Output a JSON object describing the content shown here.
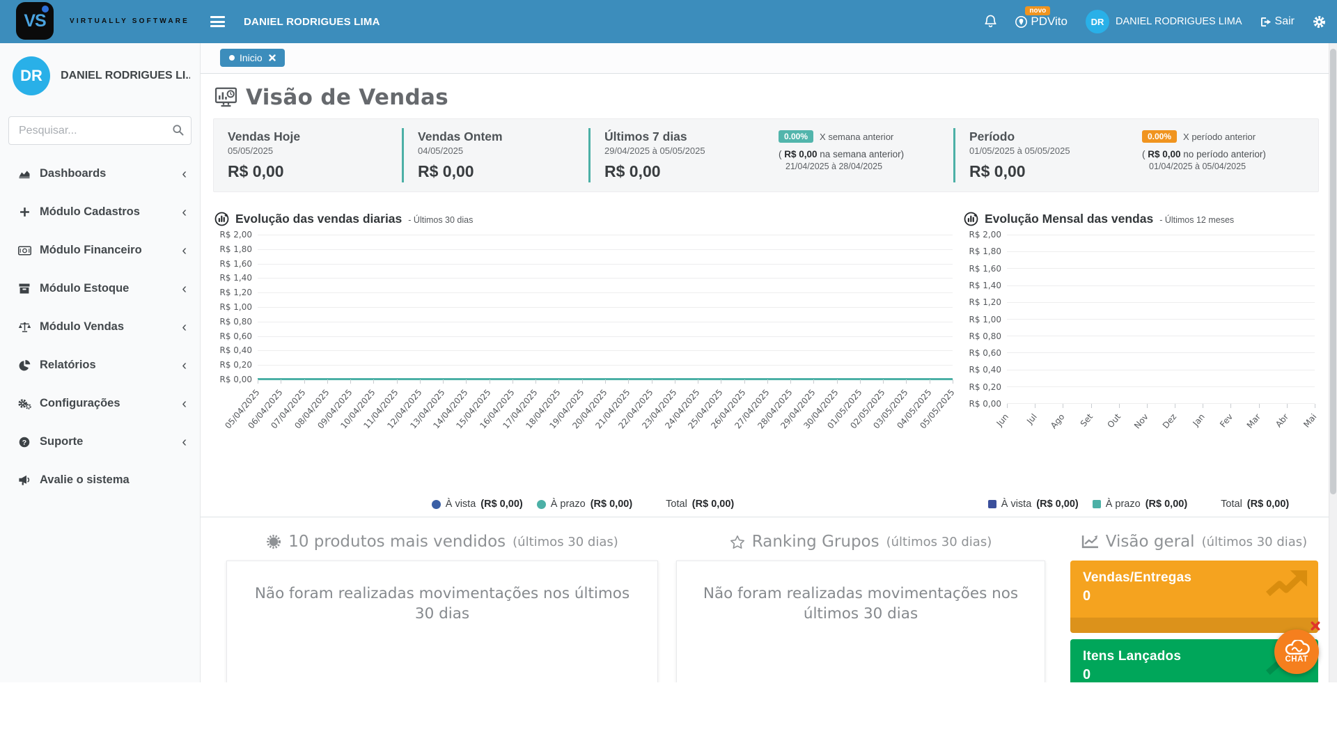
{
  "colors": {
    "navbar_blue": "#3c8dbc",
    "accent_teal": "#4cb0a6",
    "badge_teal": "#52b5ac",
    "badge_orange": "#f0941f",
    "avatar_blue": "#29b0e8",
    "card_orange": "#f5a31f",
    "card_green": "#00a65a",
    "chat_orange": "#f57f1e"
  },
  "navbar": {
    "logo_text": "VS",
    "company": "VIRTUALLY SOFTWARE",
    "user_top": "DANIEL RODRIGUES LIMA",
    "pdvito_label": "PDVito",
    "pdvito_badge": "novo",
    "avatar_initials": "DR",
    "user_name": "DANIEL RODRIGUES LIMA",
    "logout_label": "Sair"
  },
  "sidebar": {
    "avatar_initials": "DR",
    "user_name": "DANIEL RODRIGUES LI...",
    "search_placeholder": "Pesquisar...",
    "items": [
      {
        "label": "Dashboards",
        "icon": "chart-area-icon",
        "chevron": true
      },
      {
        "label": "Módulo Cadastros",
        "icon": "plus-icon",
        "chevron": true
      },
      {
        "label": "Módulo Financeiro",
        "icon": "money-icon",
        "chevron": true
      },
      {
        "label": "Módulo Estoque",
        "icon": "archive-icon",
        "chevron": true
      },
      {
        "label": "Módulo Vendas",
        "icon": "scale-icon",
        "chevron": true
      },
      {
        "label": "Relatórios",
        "icon": "pie-chart-icon",
        "chevron": true
      },
      {
        "label": "Configurações",
        "icon": "cogs-icon",
        "chevron": true
      },
      {
        "label": "Suporte",
        "icon": "question-icon",
        "chevron": true
      },
      {
        "label": "Avalie o sistema",
        "icon": "bullhorn-icon",
        "chevron": false
      }
    ]
  },
  "tabs": {
    "inicio": "Inicio"
  },
  "page_title": "Visão de Vendas",
  "stats": [
    {
      "title": "Vendas Hoje",
      "subtitle": "05/05/2025",
      "value": "R$ 0,00"
    },
    {
      "title": "Vendas Ontem",
      "subtitle": "04/05/2025",
      "value": "R$ 0,00"
    },
    {
      "title": "Últimos 7 dias",
      "subtitle": "29/04/2025 à 05/05/2025",
      "value": "R$ 0,00",
      "compare": {
        "badge": "0.00%",
        "vs_label": "X semana anterior",
        "paren": "( ",
        "amount": "R$ 0,00",
        "amount_rest": " na semana anterior)",
        "prev_range": "21/04/2025 à 28/04/2025"
      }
    },
    {
      "title": "Período",
      "subtitle": "01/05/2025 à 05/05/2025",
      "value": "R$ 0,00",
      "compare": {
        "badge": "0.00%",
        "vs_label": "X período anterior",
        "paren": "( ",
        "amount": "R$ 0,00",
        "amount_rest": " no período anterior)",
        "prev_range": "01/04/2025 à 05/04/2025"
      }
    }
  ],
  "chart_data": [
    {
      "type": "line",
      "title": "Evolução das vendas diarias",
      "subtitle": "- Últimos 30 dias",
      "ylim": [
        0,
        2
      ],
      "yticks": [
        "R$ 2,00",
        "R$ 1,80",
        "R$ 1,60",
        "R$ 1,40",
        "R$ 1,20",
        "R$ 1,00",
        "R$ 0,80",
        "R$ 0,60",
        "R$ 0,40",
        "R$ 0,20",
        "R$ 0,00"
      ],
      "x": [
        "05/04/2025",
        "06/04/2025",
        "07/04/2025",
        "08/04/2025",
        "09/04/2025",
        "10/04/2025",
        "11/04/2025",
        "12/04/2025",
        "13/04/2025",
        "14/04/2025",
        "15/04/2025",
        "16/04/2025",
        "17/04/2025",
        "18/04/2025",
        "19/04/2025",
        "20/04/2025",
        "21/04/2025",
        "22/04/2025",
        "23/04/2025",
        "24/04/2025",
        "25/04/2025",
        "26/04/2025",
        "27/04/2025",
        "28/04/2025",
        "29/04/2025",
        "30/04/2025",
        "01/05/2025",
        "02/05/2025",
        "03/05/2025",
        "04/05/2025",
        "05/05/2025"
      ],
      "series": [
        {
          "name": "À vista",
          "color": "#3a5fa5",
          "values": [
            0,
            0,
            0,
            0,
            0,
            0,
            0,
            0,
            0,
            0,
            0,
            0,
            0,
            0,
            0,
            0,
            0,
            0,
            0,
            0,
            0,
            0,
            0,
            0,
            0,
            0,
            0,
            0,
            0,
            0,
            0
          ]
        },
        {
          "name": "À prazo",
          "color": "#4cb0a6",
          "values": [
            0,
            0,
            0,
            0,
            0,
            0,
            0,
            0,
            0,
            0,
            0,
            0,
            0,
            0,
            0,
            0,
            0,
            0,
            0,
            0,
            0,
            0,
            0,
            0,
            0,
            0,
            0,
            0,
            0,
            0,
            0
          ]
        }
      ],
      "legend": [
        {
          "marker": "circle",
          "color": "#3a5fa5",
          "label": "À vista",
          "value": "(R$ 0,00)"
        },
        {
          "marker": "circle",
          "color": "#4cb0a6",
          "label": "À prazo",
          "value": "(R$ 0,00)"
        },
        {
          "marker": "none",
          "color": "",
          "label": "Total",
          "value": "(R$ 0,00)"
        }
      ],
      "grid": true,
      "legend_position": "bottom",
      "zero_line_color": "#4cb0a6"
    },
    {
      "type": "line",
      "title": "Evolução Mensal das vendas",
      "subtitle": "- Últimos 12 meses",
      "ylim": [
        0,
        2
      ],
      "yticks": [
        "R$ 2,00",
        "R$ 1,80",
        "R$ 1,60",
        "R$ 1,40",
        "R$ 1,20",
        "R$ 1,00",
        "R$ 0,80",
        "R$ 0,60",
        "R$ 0,40",
        "R$ 0,20",
        "R$ 0,00"
      ],
      "x": [
        "Jun",
        "Jul",
        "Ago",
        "Set",
        "Out",
        "Nov",
        "Dez",
        "Jan",
        "Fev",
        "Mar",
        "Abr",
        "Mai"
      ],
      "series": [
        {
          "name": "À vista",
          "color": "#3b4f9b",
          "values": []
        },
        {
          "name": "À prazo",
          "color": "#4cb0a6",
          "values": []
        }
      ],
      "legend": [
        {
          "marker": "square",
          "color": "#3b4f9b",
          "label": "À vista",
          "value": "(R$ 0,00)"
        },
        {
          "marker": "square",
          "color": "#4cb0a6",
          "label": "À prazo",
          "value": "(R$ 0,00)"
        },
        {
          "marker": "none",
          "color": "",
          "label": "Total",
          "value": "(R$ 0,00)"
        }
      ],
      "grid": true,
      "legend_position": "bottom"
    }
  ],
  "sections": {
    "products": {
      "title": "10 produtos mais vendidos",
      "period": "(últimos 30 dias)",
      "empty_message": "Não foram realizadas movimentações nos últimos 30 dias"
    },
    "ranking": {
      "title": "Ranking Grupos",
      "period": "(últimos 30 dias)",
      "empty_message": "Não foram realizadas movimentações nos últimos 30 dias"
    },
    "overview": {
      "title": "Visão geral",
      "period": "(últimos 30 dias)",
      "cards": [
        {
          "label": "Vendas/Entregas",
          "value": "0",
          "color": "#f5a31f",
          "arrow_color": "#d88c0e"
        },
        {
          "label": "Itens Lançados",
          "value": "0",
          "color": "#00a65a",
          "arrow_color": "#008d4c"
        }
      ]
    }
  },
  "chat_label": "CHAT"
}
